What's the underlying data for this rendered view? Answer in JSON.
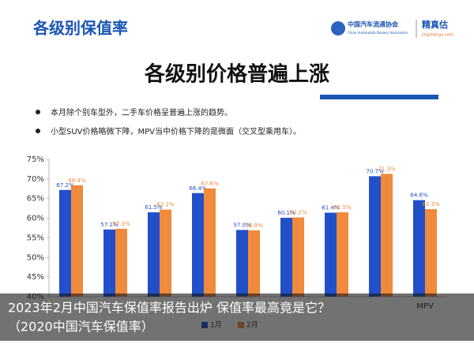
{
  "header": {
    "title": "各级别保值率",
    "org_name": "中国汽车流通协会",
    "org_name_en": "China Automobile Dealers Association",
    "brand": "精真估",
    "brand_url": "jingzhengu.com"
  },
  "slide": {
    "headline": "各级别价格普遍上涨",
    "bullets": [
      "本月除个别车型外，二手车价格呈普遍上涨的趋势。",
      "小型SUV价格略微下降，MPV当中价格下降的是微面（交叉型乘用车）。"
    ]
  },
  "chart_data": {
    "type": "bar",
    "categories": [
      null,
      null,
      null,
      null,
      null,
      null,
      null,
      null,
      "MPV"
    ],
    "series": [
      {
        "name": "1月",
        "color": "#2150c8",
        "values": [
          67.2,
          57.1,
          61.5,
          66.4,
          57.0,
          60.1,
          61.4,
          70.7,
          64.6
        ],
        "value_labels": [
          "67.2%",
          "57.1%",
          "61.5%",
          "66.4%",
          "57.0%",
          "60.1%",
          "61.4%",
          "70.7%",
          "64.6%"
        ]
      },
      {
        "name": "2月",
        "color": "#f08a3c",
        "values": [
          68.4,
          57.3,
          62.2,
          67.6,
          56.9,
          60.2,
          61.5,
          71.3,
          62.3
        ],
        "value_labels": [
          "68.4%",
          "57.3%",
          "62.2%",
          "67.6%",
          "56.9%",
          "60.2%",
          "61.5%",
          "71.3%",
          "62.3%"
        ]
      }
    ],
    "ylim": [
      40,
      75
    ],
    "yticks": [
      {
        "value": 40,
        "label": "40%"
      },
      {
        "value": 45,
        "label": "45%"
      },
      {
        "value": 50,
        "label": "50%"
      },
      {
        "value": 55,
        "label": "55%"
      },
      {
        "value": 60,
        "label": "60%"
      },
      {
        "value": 65,
        "label": "65%"
      },
      {
        "value": 70,
        "label": "70%"
      },
      {
        "value": 75,
        "label": "75%"
      }
    ],
    "grid": false,
    "legend": "bottom"
  },
  "caption": {
    "line1": "2023年2月中国汽车保值率报告出炉 保值率最高竟是它？",
    "line2": "（2020中国汽车保值率）"
  }
}
